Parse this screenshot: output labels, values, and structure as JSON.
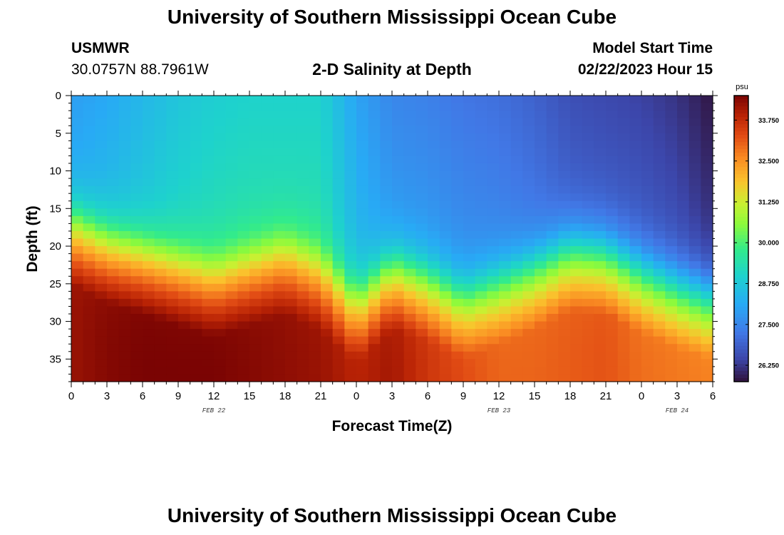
{
  "header": {
    "title": "University of Southern Mississippi Ocean Cube",
    "station_id": "USMWR",
    "station_coords": "30.0757N  88.7961W",
    "plot_title": "2-D Salinity at Depth",
    "model_start_label": "Model Start Time",
    "model_start_time": "02/22/2023 Hour 15"
  },
  "footer": {
    "title": "University of Southern Mississippi Ocean Cube"
  },
  "chart_data": {
    "type": "heatmap",
    "title": "2-D Salinity at Depth",
    "xlabel": "Forecast Time(Z)",
    "ylabel": "Depth (ft)",
    "x_range_hours": [
      0,
      54
    ],
    "y_range_ft": [
      0,
      38
    ],
    "y_inverted": true,
    "x_ticks": [
      {
        "h": 0,
        "label": "0"
      },
      {
        "h": 3,
        "label": "3"
      },
      {
        "h": 6,
        "label": "6"
      },
      {
        "h": 9,
        "label": "9"
      },
      {
        "h": 12,
        "label": "12"
      },
      {
        "h": 15,
        "label": "15"
      },
      {
        "h": 18,
        "label": "18"
      },
      {
        "h": 21,
        "label": "21"
      },
      {
        "h": 24,
        "label": "0"
      },
      {
        "h": 27,
        "label": "3"
      },
      {
        "h": 30,
        "label": "6"
      },
      {
        "h": 33,
        "label": "9"
      },
      {
        "h": 36,
        "label": "12"
      },
      {
        "h": 39,
        "label": "15"
      },
      {
        "h": 42,
        "label": "18"
      },
      {
        "h": 45,
        "label": "21"
      },
      {
        "h": 48,
        "label": "0"
      },
      {
        "h": 51,
        "label": "3"
      },
      {
        "h": 54,
        "label": "6"
      }
    ],
    "y_ticks": [
      0,
      5,
      10,
      15,
      20,
      25,
      30,
      35
    ],
    "day_labels": [
      {
        "h": 12,
        "label": "FEB 22"
      },
      {
        "h": 36,
        "label": "FEB 23"
      },
      {
        "h": 51,
        "label": "FEB 24"
      }
    ],
    "colorbar": {
      "unit": "psu",
      "range": [
        25.75,
        34.5
      ],
      "ticks": [
        "33.750",
        "32.500",
        "31.250",
        "30.000",
        "28.750",
        "27.500",
        "26.250"
      ],
      "tick_values": [
        33.75,
        32.5,
        31.25,
        30.0,
        28.75,
        27.5,
        26.25
      ]
    },
    "hours": [
      0,
      3,
      6,
      9,
      12,
      15,
      18,
      21,
      24,
      27,
      30,
      33,
      36,
      39,
      42,
      45,
      48,
      51,
      54
    ],
    "profile_summary": {
      "surface_salinity_psu": [
        27.9,
        28.1,
        28.4,
        28.7,
        28.9,
        29.0,
        29.0,
        29.0,
        28.0,
        27.5,
        27.4,
        27.2,
        27.1,
        26.9,
        26.6,
        26.5,
        26.4,
        26.2,
        25.8
      ],
      "halocline_depth_ft": [
        15.5,
        18.0,
        19.5,
        21.0,
        22.5,
        21.0,
        19.5,
        21.5,
        26.0,
        21.5,
        23.0,
        25.5,
        23.5,
        21.5,
        19.0,
        19.5,
        22.0,
        24.0,
        25.5
      ],
      "bottom_salinity_psu": [
        34.2,
        34.4,
        34.5,
        34.5,
        34.5,
        34.4,
        34.3,
        34.2,
        33.9,
        34.1,
        33.6,
        33.3,
        33.0,
        33.0,
        33.1,
        33.2,
        32.9,
        32.8,
        32.7
      ]
    }
  }
}
